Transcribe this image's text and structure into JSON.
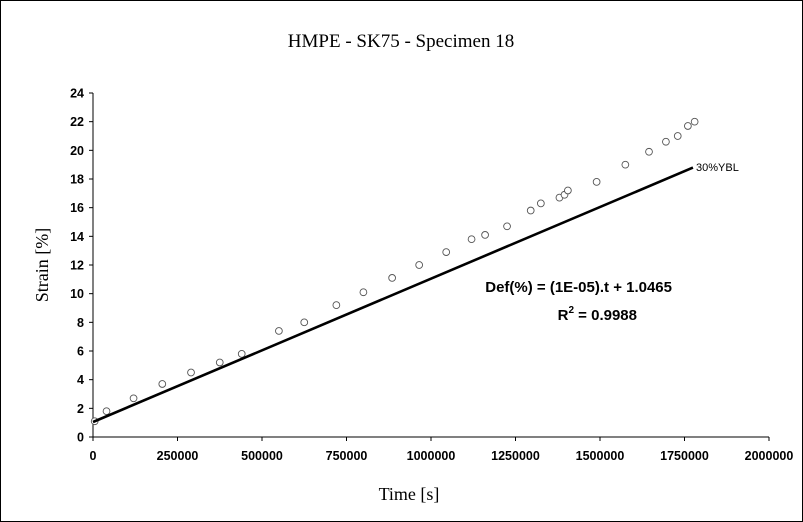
{
  "chart_data": {
    "type": "scatter",
    "title": "HMPE - SK75 - Specimen 18",
    "xlabel": "Time [s]",
    "ylabel": "Strain [%]",
    "xlim": [
      0,
      2000000
    ],
    "ylim": [
      0,
      24
    ],
    "x_ticks": [
      0,
      250000,
      500000,
      750000,
      1000000,
      1250000,
      1500000,
      1750000,
      2000000
    ],
    "y_ticks": [
      0,
      2,
      4,
      6,
      8,
      10,
      12,
      14,
      16,
      18,
      20,
      22,
      24
    ],
    "grid": false,
    "series": [
      {
        "marker": "open-circle",
        "x": [
          5000,
          40000,
          120000,
          205000,
          290000,
          375000,
          440000,
          550000,
          625000,
          720000,
          800000,
          885000,
          965000,
          1045000,
          1120000,
          1160000,
          1225000,
          1295000,
          1325000,
          1380000,
          1395000,
          1405000,
          1490000,
          1575000,
          1645000,
          1695000,
          1730000,
          1760000,
          1780000
        ],
        "y": [
          1.1,
          1.8,
          2.7,
          3.7,
          4.5,
          5.2,
          5.8,
          7.4,
          8.0,
          9.2,
          10.1,
          11.1,
          12.0,
          12.9,
          13.8,
          14.1,
          14.7,
          15.8,
          16.3,
          16.7,
          16.9,
          17.2,
          17.8,
          19.0,
          19.9,
          20.6,
          21.0,
          21.7,
          22.0
        ]
      }
    ],
    "trendline": {
      "slope": 1e-05,
      "intercept": 1.0465,
      "x_range": [
        0,
        1775000
      ],
      "equation": "Def(%) = (1E-05).t + 1.0465",
      "r2_base": "R",
      "r2_exp": "2",
      "r2_value": " = 0.9988"
    },
    "annotation": "30%YBL"
  }
}
